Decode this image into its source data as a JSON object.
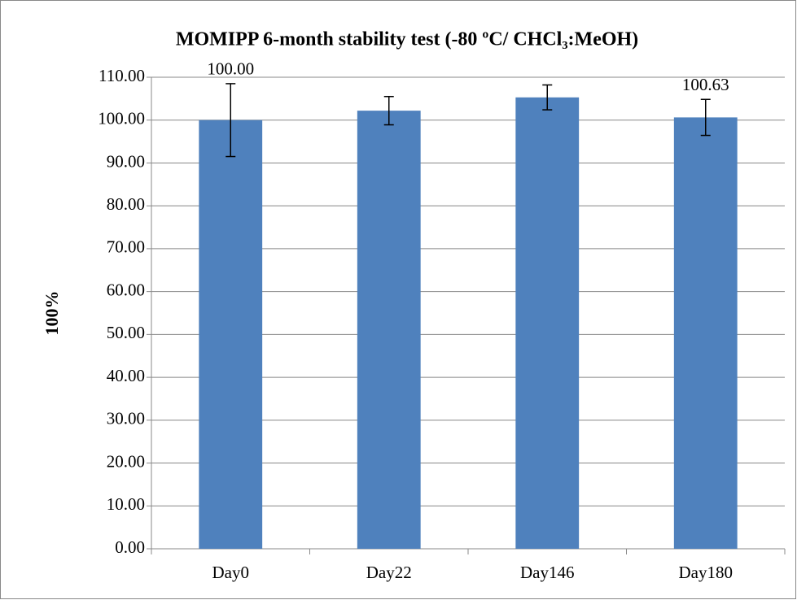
{
  "chart_data": {
    "type": "bar",
    "title": "MOMIPP 6-month stability test (-80 ºC/ CHCl₃:MeOH)",
    "y_label": "100%",
    "categories": [
      "Day0",
      "Day22",
      "Day146",
      "Day180"
    ],
    "values": [
      100.0,
      102.2,
      105.3,
      100.63
    ],
    "value_labels": [
      "100.00",
      null,
      null,
      "100.63"
    ],
    "errors": [
      8.5,
      3.3,
      2.9,
      4.2
    ],
    "color": "#4f81bd",
    "ylim": [
      0,
      110
    ],
    "yticks": [
      {
        "value": 0,
        "label": "0.00"
      },
      {
        "value": 10,
        "label": "10.00"
      },
      {
        "value": 20,
        "label": "20.00"
      },
      {
        "value": 30,
        "label": "30.00"
      },
      {
        "value": 40,
        "label": "40.00"
      },
      {
        "value": 50,
        "label": "50.00"
      },
      {
        "value": 60,
        "label": "60.00"
      },
      {
        "value": 70,
        "label": "70.00"
      },
      {
        "value": 80,
        "label": "80.00"
      },
      {
        "value": 90,
        "label": "90.00"
      },
      {
        "value": 100,
        "label": "100.00"
      },
      {
        "value": 110,
        "label": "110.00"
      }
    ],
    "grid": true
  }
}
